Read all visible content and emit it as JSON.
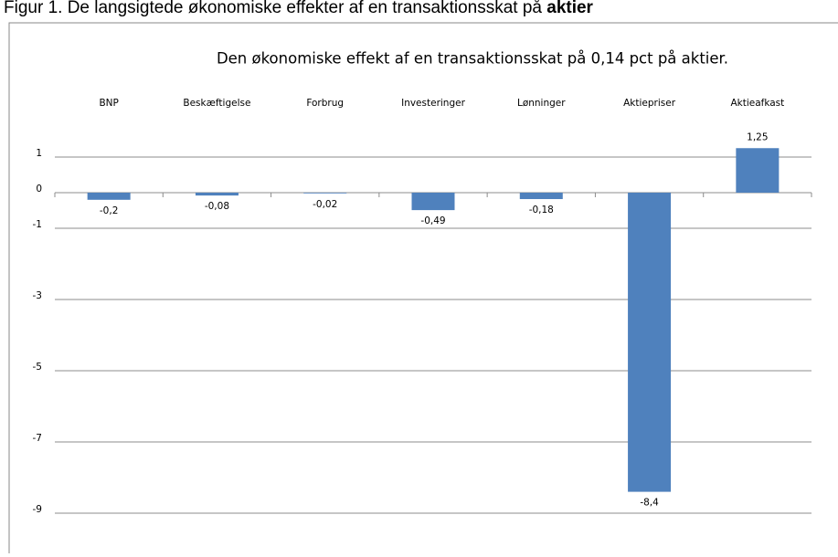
{
  "caption": {
    "text": "Figur 1. De langsigtede økonomiske effekter af en transaktionsskat på ",
    "bold": "aktier"
  },
  "chart_data": {
    "type": "bar",
    "title": "Den økonomiske effekt af en transaktionsskat på 0,14 pct på aktier.",
    "categories": [
      "BNP",
      "Beskæftigelse",
      "Forbrug",
      "Investeringer",
      "Lønninger",
      "Aktiepriser",
      "Aktieafkast"
    ],
    "values": [
      -0.2,
      -0.08,
      -0.02,
      -0.49,
      -0.18,
      -8.4,
      1.25
    ],
    "value_labels": [
      "-0,2",
      "-0,08",
      "-0,02",
      "-0,49",
      "-0,18",
      "-8,4",
      "1,25"
    ],
    "color": "#4f81bd",
    "ylim": [
      -9,
      2
    ],
    "yticks": [
      1,
      0,
      -1,
      -3,
      -5,
      -7,
      -9
    ],
    "grid": true
  }
}
